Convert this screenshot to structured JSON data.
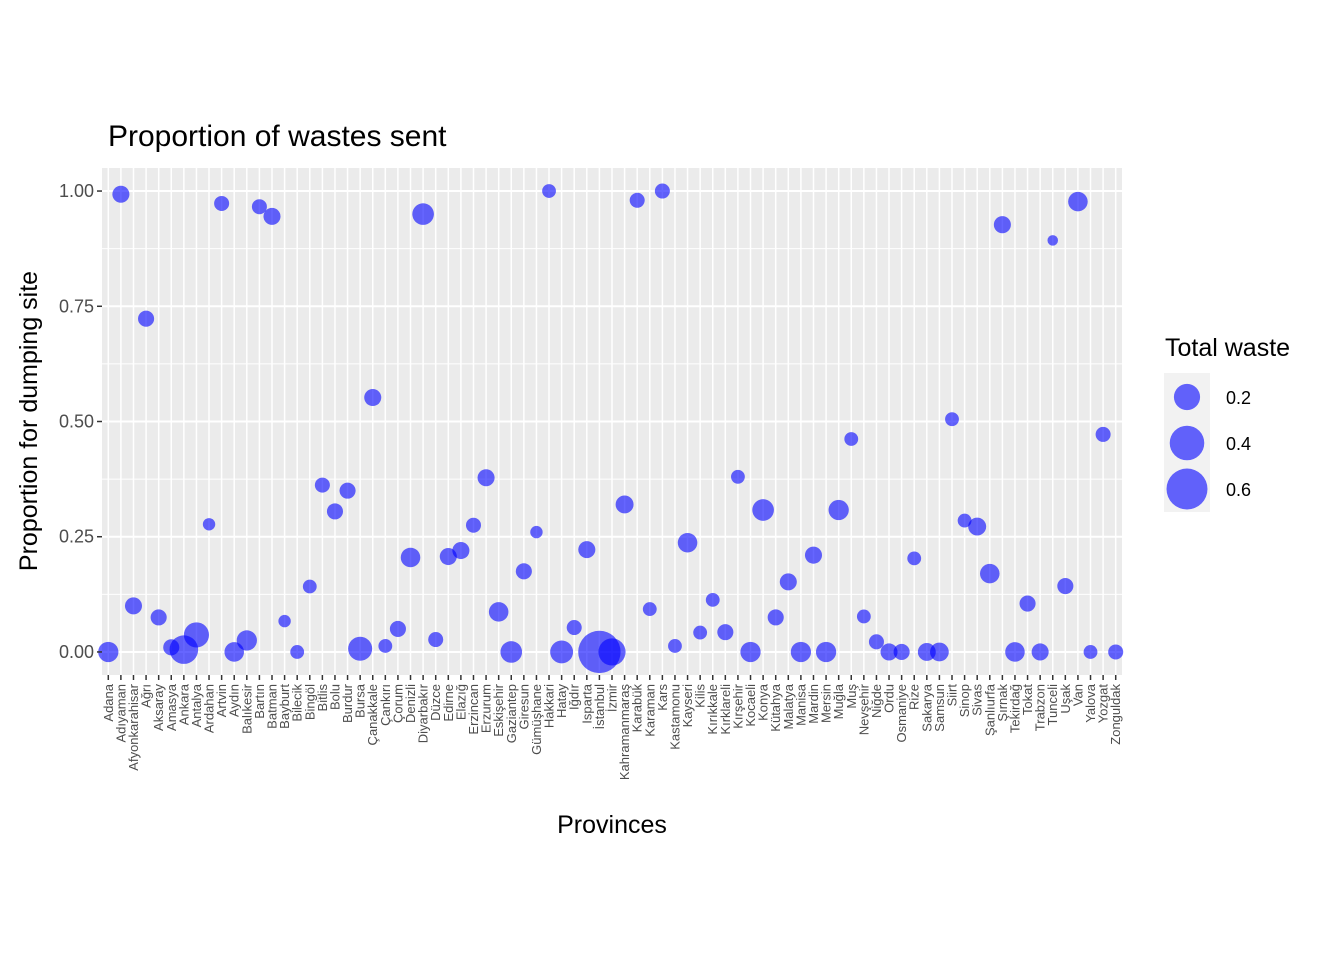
{
  "chart_data": {
    "type": "scatter",
    "title": "Proportion of wastes sent",
    "xlabel": "Provinces",
    "ylabel": "Proportion for dumping site",
    "ylim": [
      -0.05,
      1.05
    ],
    "yticks": [
      "0.00",
      "0.25",
      "0.50",
      "0.75",
      "1.00"
    ],
    "ytick_values": [
      0,
      0.25,
      0.5,
      0.75,
      1.0
    ],
    "grid": true,
    "point_color": "#0000ff",
    "panel_color": "#ebebeb",
    "legend": {
      "title": "Total waste",
      "placement": "right",
      "labels": [
        "0.2",
        "0.4",
        "0.6"
      ],
      "values": [
        0.2,
        0.4,
        0.6
      ]
    },
    "points": [
      {
        "x": "Adana",
        "y": 0.0,
        "size": 0.1
      },
      {
        "x": "Adıyaman",
        "y": 0.993,
        "size": 0.06
      },
      {
        "x": "Afyonkarahisar",
        "y": 0.1,
        "size": 0.06
      },
      {
        "x": "Ağrı",
        "y": 0.723,
        "size": 0.05
      },
      {
        "x": "Aksaray",
        "y": 0.075,
        "size": 0.05
      },
      {
        "x": "Amasya",
        "y": 0.01,
        "size": 0.05
      },
      {
        "x": "Ankara",
        "y": 0.005,
        "size": 0.25
      },
      {
        "x": "Antalya",
        "y": 0.037,
        "size": 0.18
      },
      {
        "x": "Ardahan",
        "y": 0.277,
        "size": 0.02
      },
      {
        "x": "Artvin",
        "y": 0.973,
        "size": 0.04
      },
      {
        "x": "Aydın",
        "y": 0.0,
        "size": 0.09
      },
      {
        "x": "Balıkesir",
        "y": 0.025,
        "size": 0.1
      },
      {
        "x": "Bartın",
        "y": 0.966,
        "size": 0.04
      },
      {
        "x": "Batman",
        "y": 0.945,
        "size": 0.06
      },
      {
        "x": "Bayburt",
        "y": 0.067,
        "size": 0.02
      },
      {
        "x": "Bilecik",
        "y": 0.0,
        "size": 0.03
      },
      {
        "x": "Bingöl",
        "y": 0.142,
        "size": 0.03
      },
      {
        "x": "Bitlis",
        "y": 0.362,
        "size": 0.04
      },
      {
        "x": "Bolu",
        "y": 0.305,
        "size": 0.05
      },
      {
        "x": "Burdur",
        "y": 0.35,
        "size": 0.05
      },
      {
        "x": "Bursa",
        "y": 0.007,
        "size": 0.16
      },
      {
        "x": "Çanakkale",
        "y": 0.552,
        "size": 0.06
      },
      {
        "x": "Çankırı",
        "y": 0.013,
        "size": 0.03
      },
      {
        "x": "Çorum",
        "y": 0.05,
        "size": 0.05
      },
      {
        "x": "Denizli",
        "y": 0.205,
        "size": 0.09
      },
      {
        "x": "Diyarbakır",
        "y": 0.95,
        "size": 0.12
      },
      {
        "x": "Düzce",
        "y": 0.027,
        "size": 0.04
      },
      {
        "x": "Edirne",
        "y": 0.207,
        "size": 0.06
      },
      {
        "x": "Elazığ",
        "y": 0.22,
        "size": 0.06
      },
      {
        "x": "Erzincan",
        "y": 0.275,
        "size": 0.04
      },
      {
        "x": "Erzurum",
        "y": 0.378,
        "size": 0.06
      },
      {
        "x": "Eskişehir",
        "y": 0.087,
        "size": 0.09
      },
      {
        "x": "Gaziantep",
        "y": 0.0,
        "size": 0.12
      },
      {
        "x": "Giresun",
        "y": 0.175,
        "size": 0.05
      },
      {
        "x": "Gümüşhane",
        "y": 0.26,
        "size": 0.02
      },
      {
        "x": "Hakkari",
        "y": 1.0,
        "size": 0.03
      },
      {
        "x": "Hatay",
        "y": 0.0,
        "size": 0.14
      },
      {
        "x": "Iğdır",
        "y": 0.053,
        "size": 0.04
      },
      {
        "x": "Isparta",
        "y": 0.222,
        "size": 0.06
      },
      {
        "x": "İstanbul",
        "y": 0.0,
        "size": 0.65
      },
      {
        "x": "İzmir",
        "y": 0.0,
        "size": 0.22
      },
      {
        "x": "Kahramanmaraş",
        "y": 0.32,
        "size": 0.07
      },
      {
        "x": "Karabük",
        "y": 0.98,
        "size": 0.04
      },
      {
        "x": "Karaman",
        "y": 0.093,
        "size": 0.03
      },
      {
        "x": "Kars",
        "y": 1.0,
        "size": 0.04
      },
      {
        "x": "Kastamonu",
        "y": 0.013,
        "size": 0.03
      },
      {
        "x": "Kayseri",
        "y": 0.237,
        "size": 0.09
      },
      {
        "x": "Kilis",
        "y": 0.042,
        "size": 0.03
      },
      {
        "x": "Kırıkkale",
        "y": 0.113,
        "size": 0.03
      },
      {
        "x": "Kırklareli",
        "y": 0.043,
        "size": 0.05
      },
      {
        "x": "Kırşehir",
        "y": 0.38,
        "size": 0.03
      },
      {
        "x": "Kocaeli",
        "y": 0.0,
        "size": 0.1
      },
      {
        "x": "Konya",
        "y": 0.308,
        "size": 0.12
      },
      {
        "x": "Kütahya",
        "y": 0.075,
        "size": 0.05
      },
      {
        "x": "Malatya",
        "y": 0.152,
        "size": 0.06
      },
      {
        "x": "Manisa",
        "y": 0.0,
        "size": 0.1
      },
      {
        "x": "Mardin",
        "y": 0.21,
        "size": 0.06
      },
      {
        "x": "Mersin",
        "y": 0.0,
        "size": 0.1
      },
      {
        "x": "Muğla",
        "y": 0.308,
        "size": 0.1
      },
      {
        "x": "Muş",
        "y": 0.462,
        "size": 0.03
      },
      {
        "x": "Nevşehir",
        "y": 0.077,
        "size": 0.03
      },
      {
        "x": "Niğde",
        "y": 0.022,
        "size": 0.04
      },
      {
        "x": "Ordu",
        "y": 0.0,
        "size": 0.06
      },
      {
        "x": "Osmaniye",
        "y": 0.0,
        "size": 0.05
      },
      {
        "x": "Rize",
        "y": 0.203,
        "size": 0.03
      },
      {
        "x": "Sakarya",
        "y": 0.0,
        "size": 0.07
      },
      {
        "x": "Samsun",
        "y": 0.0,
        "size": 0.08
      },
      {
        "x": "Siirt",
        "y": 0.505,
        "size": 0.03
      },
      {
        "x": "Sinop",
        "y": 0.285,
        "size": 0.03
      },
      {
        "x": "Sivas",
        "y": 0.272,
        "size": 0.07
      },
      {
        "x": "Şanlıurfa",
        "y": 0.17,
        "size": 0.09
      },
      {
        "x": "Şırnak",
        "y": 0.927,
        "size": 0.06
      },
      {
        "x": "Tekirdağ",
        "y": 0.0,
        "size": 0.09
      },
      {
        "x": "Tokat",
        "y": 0.105,
        "size": 0.05
      },
      {
        "x": "Trabzon",
        "y": 0.0,
        "size": 0.06
      },
      {
        "x": "Tunceli",
        "y": 0.893,
        "size": 0.01
      },
      {
        "x": "Uşak",
        "y": 0.143,
        "size": 0.05
      },
      {
        "x": "Van",
        "y": 0.977,
        "size": 0.09
      },
      {
        "x": "Yalova",
        "y": 0.0,
        "size": 0.03
      },
      {
        "x": "Yozgat",
        "y": 0.472,
        "size": 0.04
      },
      {
        "x": "Zonguldak",
        "y": 0.0,
        "size": 0.04
      }
    ]
  }
}
